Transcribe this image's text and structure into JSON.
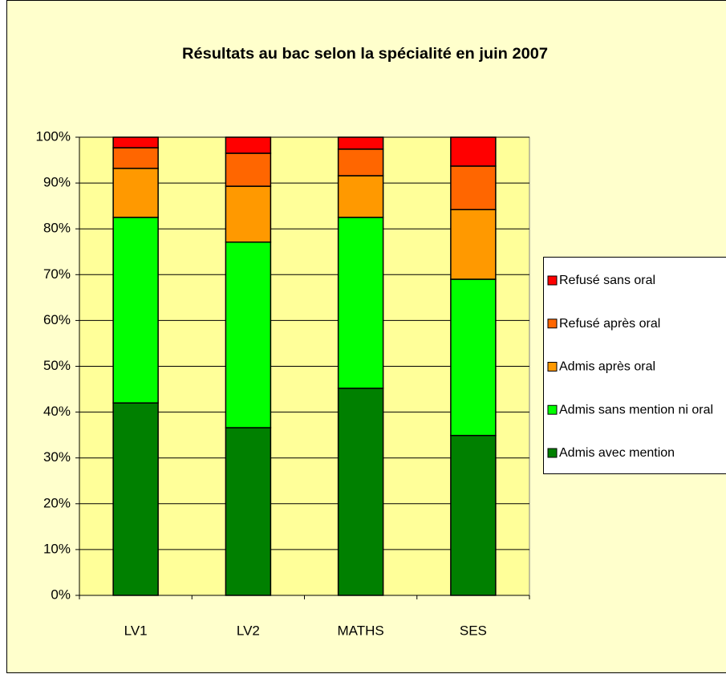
{
  "chart_data": {
    "type": "stacked_bar",
    "title": "Résultats au bac selon la spécialité en juin 2007",
    "categories": [
      "LV1",
      "LV2",
      "MATHS",
      "SES"
    ],
    "series": [
      {
        "name": "Admis avec mention",
        "color": "#008000",
        "values": [
          42.0,
          36.6,
          45.2,
          34.9
        ]
      },
      {
        "name": "Admis sans mention ni oral",
        "color": "#00ff00",
        "values": [
          40.5,
          40.5,
          37.3,
          34.1
        ]
      },
      {
        "name": "Admis après oral",
        "color": "#ff9900",
        "values": [
          10.7,
          12.2,
          9.1,
          15.2
        ]
      },
      {
        "name": "Refusé après oral",
        "color": "#ff6600",
        "values": [
          4.5,
          7.2,
          5.8,
          9.5
        ]
      },
      {
        "name": "Refusé sans oral",
        "color": "#ff0000",
        "values": [
          2.3,
          3.5,
          2.6,
          6.3
        ]
      }
    ],
    "ylim": [
      0,
      100
    ],
    "yticks": [
      {
        "value": 0,
        "label": "0%"
      },
      {
        "value": 10,
        "label": "10%"
      },
      {
        "value": 20,
        "label": "20%"
      },
      {
        "value": 30,
        "label": "30%"
      },
      {
        "value": 40,
        "label": "40%"
      },
      {
        "value": 50,
        "label": "50%"
      },
      {
        "value": 60,
        "label": "60%"
      },
      {
        "value": 70,
        "label": "70%"
      },
      {
        "value": 80,
        "label": "80%"
      },
      {
        "value": 90,
        "label": "90%"
      },
      {
        "value": 100,
        "label": "100%"
      }
    ],
    "grid": true,
    "legend": "right"
  }
}
